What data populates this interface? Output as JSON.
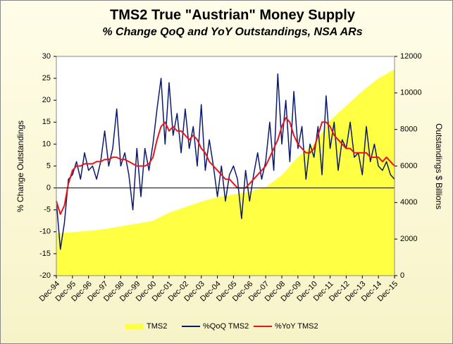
{
  "chart_data": {
    "type": "line",
    "title": "TMS2 True \"Austrian\" Money Supply",
    "subtitle": "% Change QoQ and YoY Outstandings, NSA ARs",
    "y_label": "% Change Outstandings",
    "y2_label": "Outstandings $ Billions",
    "categories": [
      "Dec-94",
      null,
      null,
      null,
      "Dec-95",
      null,
      null,
      null,
      "Dec-96",
      null,
      null,
      null,
      "Dec-97",
      null,
      null,
      null,
      "Dec-98",
      null,
      null,
      null,
      "Dec-99",
      null,
      null,
      null,
      "Dec-00",
      null,
      null,
      null,
      "Dec-01",
      null,
      null,
      null,
      "Dec-02",
      null,
      null,
      null,
      "Dec-03",
      null,
      null,
      null,
      "Dec-04",
      null,
      null,
      null,
      "Dec-05",
      null,
      null,
      null,
      "Dec-06",
      null,
      null,
      null,
      "Dec-07",
      null,
      null,
      null,
      "Dec-08",
      null,
      null,
      null,
      "Dec-09",
      null,
      null,
      null,
      "Dec-10",
      null,
      null,
      null,
      "Dec-11",
      null,
      null,
      null,
      "Dec-12",
      null,
      null,
      null,
      "Dec-13",
      null,
      null,
      null,
      "Dec-14",
      null,
      null,
      null,
      "Dec-15"
    ],
    "series": [
      {
        "name": "TMS2",
        "type": "area",
        "axis": "y2",
        "color": "#ffff44",
        "values": [
          2300,
          2320,
          2340,
          2360,
          2380,
          2398,
          2415,
          2433,
          2450,
          2475,
          2500,
          2525,
          2550,
          2588,
          2625,
          2663,
          2700,
          2738,
          2775,
          2813,
          2850,
          2888,
          2925,
          2963,
          3000,
          3113,
          3225,
          3338,
          3450,
          3525,
          3600,
          3675,
          3750,
          3825,
          3900,
          3975,
          4050,
          4113,
          4175,
          4238,
          4300,
          4338,
          4375,
          4413,
          4450,
          4488,
          4525,
          4563,
          4600,
          4663,
          4725,
          4788,
          4850,
          5013,
          5175,
          5338,
          5500,
          5750,
          6000,
          6250,
          6500,
          6675,
          6850,
          7025,
          7200,
          7525,
          7850,
          8175,
          8500,
          8700,
          8900,
          9100,
          9300,
          9500,
          9700,
          9900,
          10100,
          10275,
          10450,
          10625,
          10800,
          10925,
          11050,
          11175,
          11300
        ]
      },
      {
        "name": "%QoQ TMS2",
        "type": "line",
        "color": "#0a1a6e",
        "values": [
          -3,
          -14,
          -8,
          2,
          3,
          6,
          2,
          8,
          4,
          5,
          2,
          6,
          13,
          5,
          9,
          18,
          5,
          8,
          3,
          -5,
          9,
          -2,
          9,
          4,
          10,
          18,
          25,
          10,
          24,
          12,
          17,
          8,
          18,
          9,
          14,
          5,
          19,
          4,
          11,
          5,
          -2,
          5,
          -3,
          3,
          5,
          2,
          -7,
          4,
          -3,
          3,
          8,
          2,
          6,
          15,
          4,
          26,
          10,
          20,
          6,
          22,
          9,
          14,
          2,
          10,
          7,
          14,
          3,
          21,
          9,
          15,
          4,
          11,
          9,
          15,
          7,
          8,
          3,
          14,
          6,
          10,
          5,
          4,
          6,
          3,
          2
        ]
      },
      {
        "name": "%YoY TMS2",
        "type": "line",
        "color": "#e8141a",
        "values": [
          -3,
          -6,
          -4,
          1,
          4,
          5,
          5,
          5.5,
          5.5,
          5.5,
          6,
          6,
          6.5,
          6.5,
          7,
          7,
          6.5,
          6.5,
          6,
          5.5,
          5,
          5,
          5,
          5.5,
          7,
          11,
          14,
          15,
          13,
          14,
          13,
          13,
          12,
          11,
          12,
          11,
          9,
          8,
          6,
          5,
          4,
          3,
          2,
          2,
          1,
          0,
          0,
          0,
          1,
          2,
          3,
          4,
          5,
          7,
          9,
          11,
          14,
          16,
          15,
          12,
          10,
          9,
          8,
          8,
          9,
          12,
          15,
          15,
          14,
          12,
          11,
          10,
          9,
          9,
          8,
          8,
          8,
          8,
          7,
          7,
          7,
          6,
          7,
          6,
          5
        ]
      }
    ],
    "ylim": [
      -20,
      30
    ],
    "yticks": [
      -20,
      -15,
      -10,
      -5,
      0,
      5,
      10,
      15,
      20,
      25,
      30
    ],
    "y2lim": [
      0,
      12000
    ],
    "y2ticks": [
      0,
      2000,
      4000,
      6000,
      8000,
      10000,
      12000
    ],
    "legend": "bottom"
  }
}
